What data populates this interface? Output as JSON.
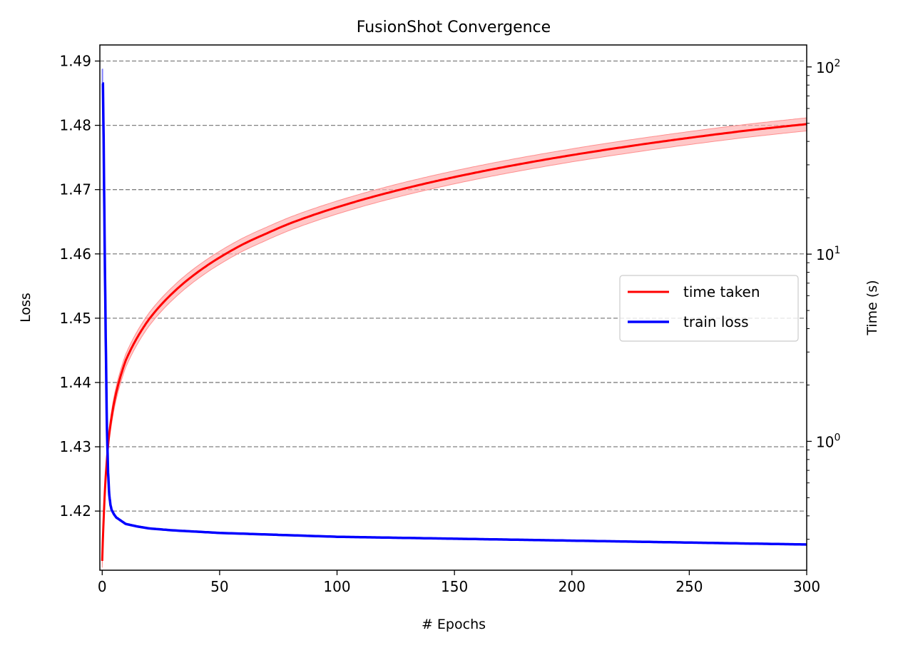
{
  "chart_data": {
    "type": "line",
    "title": "FusionShot Convergence",
    "xlabel": "# Epochs",
    "ylabel_left": "Loss",
    "ylabel_right": "Time (s)",
    "xlim": [
      -1,
      300
    ],
    "ylim_left": [
      1.4108,
      1.4925
    ],
    "ylim_right_log": [
      0.205,
      131
    ],
    "right_scale": "log",
    "x_ticks": [
      "0",
      "50",
      "100",
      "150",
      "200",
      "250",
      "300"
    ],
    "left_ticks": [
      "1.42",
      "1.43",
      "1.44",
      "1.45",
      "1.46",
      "1.47",
      "1.48",
      "1.49"
    ],
    "right_ticks": [
      {
        "base": "10",
        "exp": "0"
      },
      {
        "base": "10",
        "exp": "1"
      },
      {
        "base": "10",
        "exp": "2"
      }
    ],
    "grid": "horizontal dashed (left axis)",
    "legend_position": "center-right",
    "series": [
      {
        "name": "time taken",
        "axis": "right",
        "color": "#ff0000",
        "band_color": "#ffb0b0",
        "x": [
          0,
          0.5,
          1,
          2,
          3,
          5,
          7,
          10,
          15,
          20,
          25,
          30,
          40,
          50,
          60,
          70,
          80,
          100,
          125,
          150,
          175,
          200,
          225,
          250,
          275,
          300
        ],
        "values": [
          0.23,
          0.35,
          0.5,
          0.8,
          1.1,
          1.6,
          2.05,
          2.7,
          3.6,
          4.5,
          5.35,
          6.2,
          7.9,
          9.6,
          11.3,
          12.9,
          14.6,
          17.8,
          21.8,
          25.8,
          29.8,
          33.8,
          37.8,
          41.8,
          45.8,
          49.5
        ],
        "band_rel": 0.08
      },
      {
        "name": "train loss",
        "axis": "left",
        "color": "#0000ff",
        "x": [
          0,
          0.3,
          0.6,
          1,
          1.5,
          2,
          2.5,
          3,
          3.5,
          4,
          5,
          6,
          8,
          10,
          15,
          20,
          30,
          40,
          50,
          75,
          100,
          150,
          200,
          250,
          300
        ],
        "values": [
          1.4865,
          1.4865,
          1.478,
          1.463,
          1.447,
          1.433,
          1.426,
          1.4225,
          1.421,
          1.4202,
          1.4195,
          1.419,
          1.4185,
          1.418,
          1.4176,
          1.4173,
          1.417,
          1.4168,
          1.4166,
          1.4163,
          1.416,
          1.4157,
          1.4154,
          1.4151,
          1.4148
        ],
        "spike_max": 1.4888
      }
    ]
  }
}
